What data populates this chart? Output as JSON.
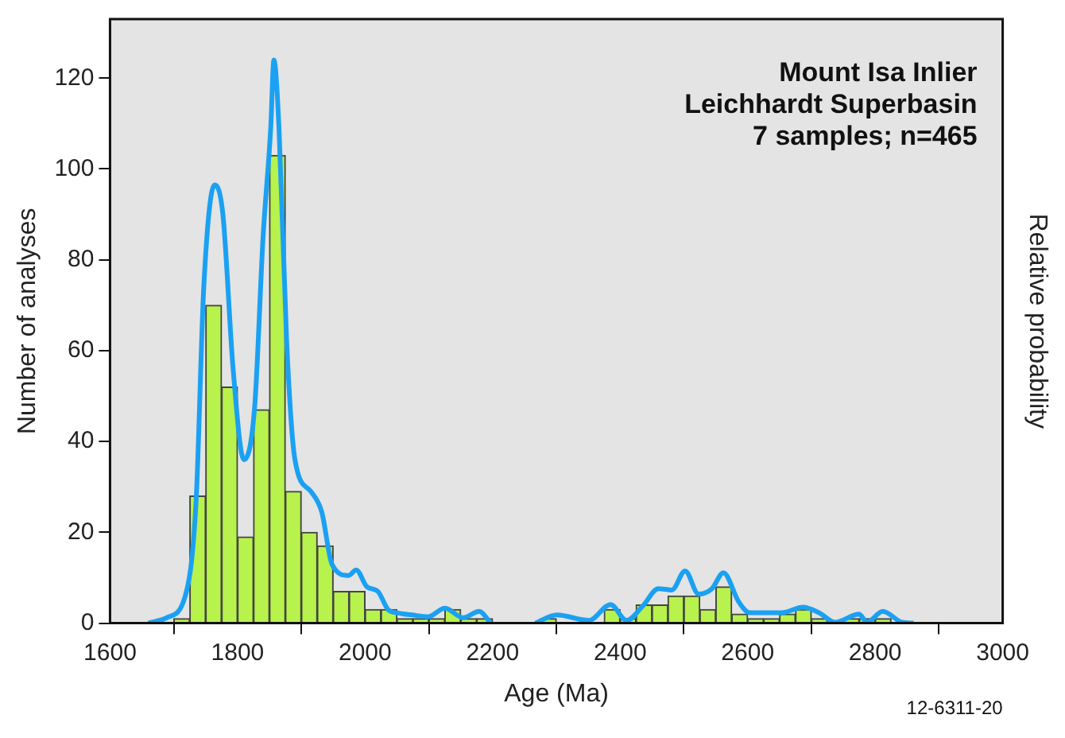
{
  "chart_data": {
    "type": "histogram",
    "title": "Mount Isa Inlier",
    "subtitle": "Leichhardt Superbasin",
    "xlabel": "Age (Ma)",
    "ylabel": "Number of analyses",
    "y2label": "Relative probability",
    "annotations": [
      "7 samples; n=465",
      "12-6311-20"
    ],
    "bins": [
      1700,
      1725,
      1750,
      1775,
      1800,
      1825,
      1850,
      1875,
      1900,
      1925,
      1950,
      1975,
      2000,
      2025,
      2050,
      2075,
      2100,
      2125,
      2150,
      2175,
      2200,
      2225,
      2250,
      2275,
      2300,
      2325,
      2350,
      2375,
      2400,
      2425,
      2450,
      2475,
      2500,
      2525,
      2550,
      2575,
      2600,
      2625,
      2650,
      2675,
      2700,
      2725,
      2750,
      2775,
      2800,
      2825,
      2850
    ],
    "values": [
      1,
      28,
      70,
      52,
      19,
      47,
      103,
      29,
      20,
      17,
      7,
      7,
      3,
      3,
      1,
      1,
      1,
      3,
      1,
      1,
      0,
      0,
      0,
      1,
      0,
      0,
      0,
      3,
      1,
      4,
      4,
      6,
      6,
      3,
      8,
      2,
      1,
      1,
      2,
      3,
      1,
      0,
      1,
      1,
      1,
      0
    ],
    "color": "#b8f24c",
    "series": [
      {
        "type": "line",
        "color": "#1ba1f2",
        "x": [
          1660,
          1689,
          1718,
          1735,
          1747,
          1764,
          1777,
          1793,
          1810,
          1827,
          1840,
          1852,
          1857,
          1865,
          1877,
          1890,
          1915,
          1932,
          1948,
          1974,
          1986,
          2003,
          2020,
          2036,
          2049,
          2074,
          2099,
          2125,
          2154,
          2179,
          2196,
          2230,
          2267,
          2301,
          2351,
          2385,
          2410,
          2435,
          2460,
          2481,
          2502,
          2523,
          2544,
          2562,
          2586,
          2603,
          2653,
          2687,
          2712,
          2737,
          2775,
          2787,
          2812,
          2842,
          2860
        ],
        "values": [
          0,
          1.2,
          6,
          27,
          74,
          96.5,
          90,
          56,
          36,
          48,
          85,
          109,
          124,
          109,
          62,
          36,
          29,
          24.5,
          13,
          10.5,
          11.7,
          8,
          7,
          3,
          2.3,
          1.8,
          1.4,
          3.3,
          1.2,
          2.6,
          0.2,
          null,
          0,
          1.8,
          0.6,
          4.1,
          0.6,
          3.7,
          7.6,
          7.3,
          11.5,
          6.4,
          7.6,
          11.1,
          4.7,
          2.3,
          2.3,
          3.5,
          2.3,
          0.2,
          2,
          0.2,
          2.6,
          0.2,
          0
        ]
      }
    ],
    "xlim": [
      1600,
      3000
    ],
    "xticks": [
      1600,
      1800,
      2000,
      2200,
      2400,
      2600,
      2800,
      3000
    ],
    "ylim": [
      0,
      133
    ],
    "yticks": [
      0,
      20,
      40,
      60,
      80,
      100,
      120
    ],
    "grid": false,
    "legend": false
  }
}
